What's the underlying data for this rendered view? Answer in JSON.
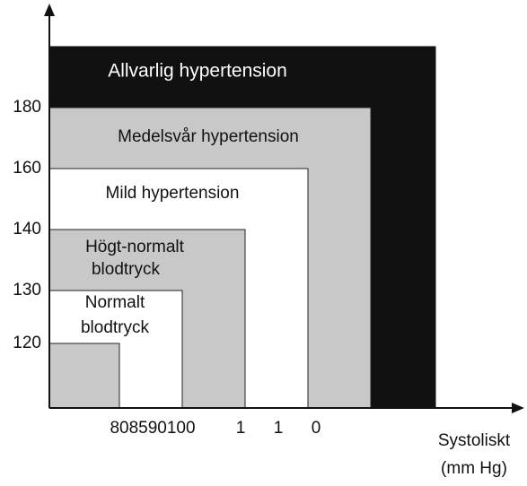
{
  "y_labels": [
    "120",
    "130",
    "140",
    "160",
    "180"
  ],
  "x_labels": [
    "808590100",
    "1",
    "1",
    "0"
  ],
  "x_axis_title": [
    "Systoliskt",
    "(mm Hg)"
  ],
  "regions": [
    {
      "label": [
        "Allvarlig hypertension"
      ]
    },
    {
      "label": [
        "Medelsvår hypertension"
      ]
    },
    {
      "label": [
        "Mild hypertension"
      ]
    },
    {
      "label": [
        "Högt-normalt",
        "blodtryck"
      ]
    },
    {
      "label": [
        "Normalt",
        "blodtryck"
      ]
    }
  ]
}
